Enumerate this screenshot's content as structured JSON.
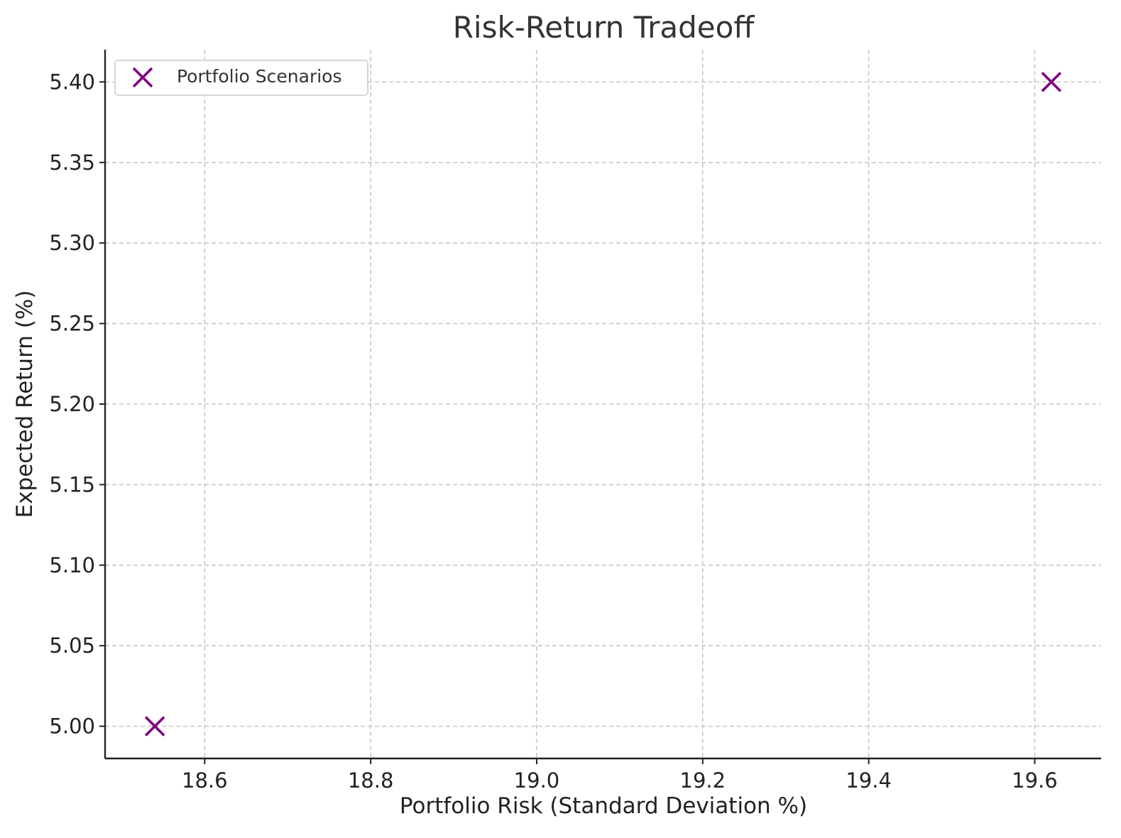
{
  "chart_data": {
    "type": "scatter",
    "title": "Risk-Return Tradeoff",
    "xlabel": "Portfolio Risk (Standard Deviation %)",
    "ylabel": "Expected Return (%)",
    "xlim": [
      18.48,
      19.68
    ],
    "ylim": [
      4.98,
      5.42
    ],
    "xticks": [
      18.6,
      18.8,
      19.0,
      19.2,
      19.4,
      19.6
    ],
    "xtick_labels": [
      "18.6",
      "18.8",
      "19.0",
      "19.2",
      "19.4",
      "19.6"
    ],
    "yticks": [
      5.0,
      5.05,
      5.1,
      5.15,
      5.2,
      5.25,
      5.3,
      5.35,
      5.4
    ],
    "ytick_labels": [
      "5.00",
      "5.05",
      "5.10",
      "5.15",
      "5.20",
      "5.25",
      "5.30",
      "5.35",
      "5.40"
    ],
    "grid": true,
    "legend_position": "top-left",
    "series": [
      {
        "name": "Portfolio Scenarios",
        "marker": "x",
        "color": "#800080",
        "points": [
          {
            "x": 18.54,
            "y": 5.0
          },
          {
            "x": 19.62,
            "y": 5.4
          }
        ]
      }
    ]
  }
}
